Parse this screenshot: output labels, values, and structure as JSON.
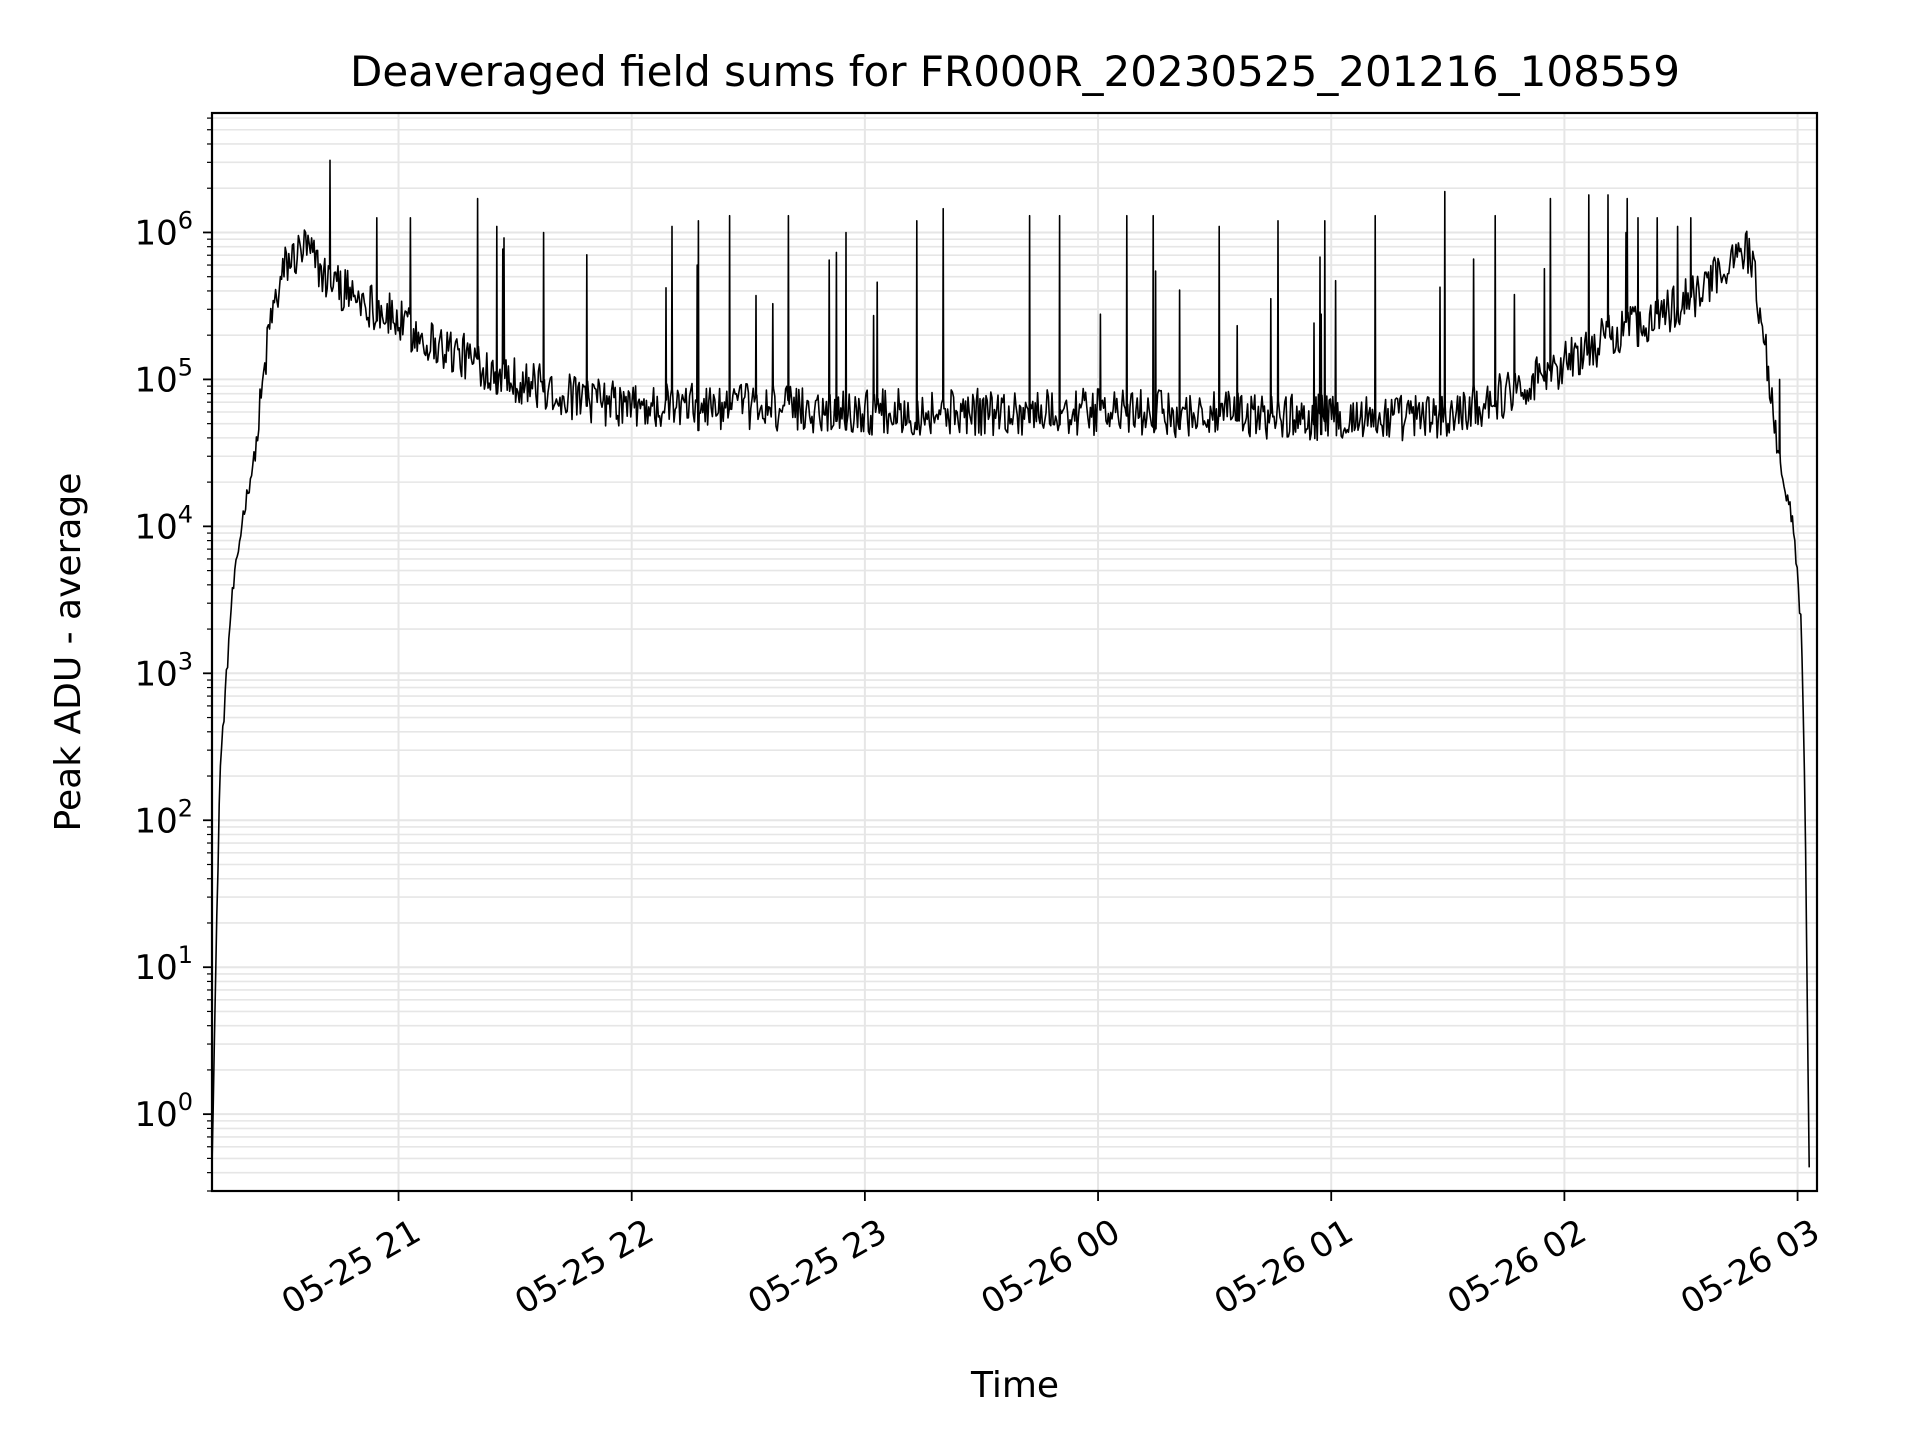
{
  "chart_data": {
    "type": "line",
    "title": "Deaveraged field sums for FR000R_20230525_201216_108559",
    "xlabel": "Time",
    "ylabel": "Peak ADU - average",
    "y_scale": "log",
    "y_ticks": [
      {
        "base": "10",
        "exp": "0",
        "value": 1
      },
      {
        "base": "10",
        "exp": "1",
        "value": 10
      },
      {
        "base": "10",
        "exp": "2",
        "value": 100
      },
      {
        "base": "10",
        "exp": "3",
        "value": 1000
      },
      {
        "base": "10",
        "exp": "4",
        "value": 10000
      },
      {
        "base": "10",
        "exp": "5",
        "value": 100000
      },
      {
        "base": "10",
        "exp": "6",
        "value": 1000000
      }
    ],
    "x_ticks": [
      {
        "label": "05-25 21",
        "time": "2023-05-25T21:00"
      },
      {
        "label": "05-25 22",
        "time": "2023-05-25T22:00"
      },
      {
        "label": "05-25 23",
        "time": "2023-05-25T23:00"
      },
      {
        "label": "05-26 00",
        "time": "2023-05-26T00:00"
      },
      {
        "label": "05-26 01",
        "time": "2023-05-26T01:00"
      },
      {
        "label": "05-26 02",
        "time": "2023-05-26T02:00"
      },
      {
        "label": "05-26 03",
        "time": "2023-05-26T03:00"
      }
    ],
    "xlim": [
      "2023-05-25T20:12",
      "2023-05-26T03:05"
    ],
    "ylim": [
      0.3,
      6500000
    ],
    "grid": true,
    "line_color": "#000000",
    "grid_color": "#e6e6e6",
    "series": [
      {
        "baseline": [
          {
            "t": "2023-05-25T20:12",
            "v": 0.5
          },
          {
            "t": "2023-05-25T20:14",
            "v": 200
          },
          {
            "t": "2023-05-25T20:17",
            "v": 3000
          },
          {
            "t": "2023-05-25T20:20",
            "v": 12000
          },
          {
            "t": "2023-05-25T20:23",
            "v": 30000
          },
          {
            "t": "2023-05-25T20:27",
            "v": 250000
          },
          {
            "t": "2023-05-25T20:31",
            "v": 600000
          },
          {
            "t": "2023-05-25T20:36",
            "v": 800000
          },
          {
            "t": "2023-05-25T20:41",
            "v": 500000
          },
          {
            "t": "2023-05-25T20:47",
            "v": 400000
          },
          {
            "t": "2023-05-25T20:55",
            "v": 300000
          },
          {
            "t": "2023-05-25T21:05",
            "v": 200000
          },
          {
            "t": "2023-05-25T21:15",
            "v": 150000
          },
          {
            "t": "2023-05-25T21:30",
            "v": 100000
          },
          {
            "t": "2023-05-25T21:45",
            "v": 75000
          },
          {
            "t": "2023-05-25T22:00",
            "v": 65000
          },
          {
            "t": "2023-05-25T22:30",
            "v": 65000
          },
          {
            "t": "2023-05-25T23:00",
            "v": 60000
          },
          {
            "t": "2023-05-26T00:00",
            "v": 60000
          },
          {
            "t": "2023-05-26T01:00",
            "v": 55000
          },
          {
            "t": "2023-05-26T01:30",
            "v": 55000
          },
          {
            "t": "2023-05-26T01:45",
            "v": 80000
          },
          {
            "t": "2023-05-26T02:00",
            "v": 130000
          },
          {
            "t": "2023-05-26T02:15",
            "v": 220000
          },
          {
            "t": "2023-05-26T02:30",
            "v": 320000
          },
          {
            "t": "2023-05-26T02:40",
            "v": 500000
          },
          {
            "t": "2023-05-26T02:44",
            "v": 800000
          },
          {
            "t": "2023-05-26T02:48",
            "v": 700000
          },
          {
            "t": "2023-05-26T02:52",
            "v": 150000
          },
          {
            "t": "2023-05-26T02:55",
            "v": 30000
          },
          {
            "t": "2023-05-26T02:59",
            "v": 10000
          },
          {
            "t": "2023-05-26T03:01",
            "v": 2000
          },
          {
            "t": "2023-05-26T03:02",
            "v": 100
          },
          {
            "t": "2023-05-26T03:03",
            "v": 0.4
          }
        ],
        "spikes": [
          {
            "t": "2023-05-25T20:42",
            "v": 3100000
          },
          {
            "t": "2023-05-25T21:20",
            "v": 1700000
          },
          {
            "t": "2023-05-25T21:25",
            "v": 1100000
          },
          {
            "t": "2023-05-25T21:37",
            "v": 1000000
          },
          {
            "t": "2023-05-25T22:10",
            "v": 1100000
          },
          {
            "t": "2023-05-25T22:17",
            "v": 1200000
          },
          {
            "t": "2023-05-25T22:25",
            "v": 1300000
          },
          {
            "t": "2023-05-25T22:40",
            "v": 1300000
          },
          {
            "t": "2023-05-25T22:55",
            "v": 1000000
          },
          {
            "t": "2023-05-25T23:13",
            "v": 1200000
          },
          {
            "t": "2023-05-25T23:20",
            "v": 1450000
          },
          {
            "t": "2023-05-25T23:42",
            "v": 1300000
          },
          {
            "t": "2023-05-25T23:50",
            "v": 1300000
          },
          {
            "t": "2023-05-26T00:07",
            "v": 1300000
          },
          {
            "t": "2023-05-26T00:14",
            "v": 1300000
          },
          {
            "t": "2023-05-26T00:31",
            "v": 1100000
          },
          {
            "t": "2023-05-26T00:46",
            "v": 1200000
          },
          {
            "t": "2023-05-26T00:58",
            "v": 1200000
          },
          {
            "t": "2023-05-26T01:11",
            "v": 1300000
          },
          {
            "t": "2023-05-26T01:29",
            "v": 1900000
          },
          {
            "t": "2023-05-26T01:42",
            "v": 1300000
          },
          {
            "t": "2023-05-26T01:56",
            "v": 1700000
          },
          {
            "t": "2023-05-26T02:06",
            "v": 1800000
          },
          {
            "t": "2023-05-26T02:11",
            "v": 1800000
          },
          {
            "t": "2023-05-26T02:16",
            "v": 1700000
          },
          {
            "t": "2023-05-26T02:29",
            "v": 1100000
          },
          {
            "t": "2023-05-26T02:55",
            "v": 100000
          }
        ]
      }
    ]
  }
}
